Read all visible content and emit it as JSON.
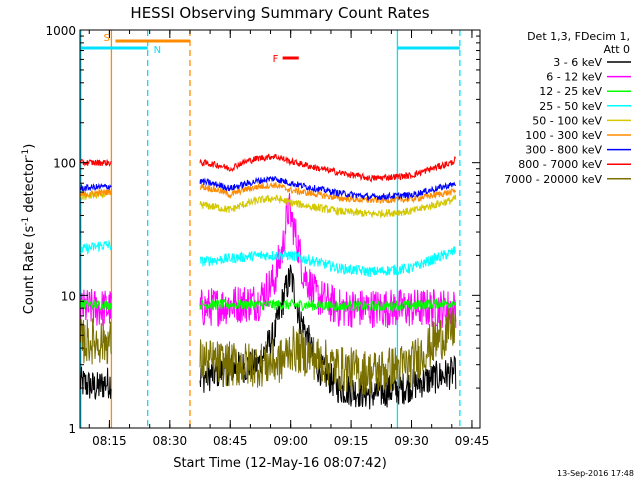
{
  "chart_data": {
    "type": "line",
    "title": "HESSI Observing Summary Count Rates",
    "xlabel": "Start Time (12-May-16 08:07:42)",
    "ylabel_main": "Count Rate (s",
    "ylabel_sup1": "-1",
    "ylabel_mid": " detector",
    "ylabel_sup2": "-1",
    "ylabel_end": ")",
    "yscale": "log",
    "ylim": [
      1,
      1000
    ],
    "xlim_minutes_after_0800": [
      7.7,
      107
    ],
    "yticks": [
      "1",
      "10",
      "100",
      "1000"
    ],
    "xticks": [
      "08:15",
      "08:30",
      "08:45",
      "09:00",
      "09:15",
      "09:30",
      "09:45"
    ],
    "legend": {
      "header1": "Det 1,3, FDecim 1,",
      "header2": "Att 0",
      "placement": "right"
    },
    "series": [
      {
        "name": "3 - 6 keV",
        "color": "#000000",
        "x": [
          7.7,
          12,
          14,
          38,
          45,
          52,
          56,
          58,
          60,
          62,
          66,
          72,
          80,
          88,
          96,
          100,
          101
        ],
        "values": [
          2.2,
          2.0,
          2.2,
          2.4,
          2.8,
          3.0,
          5.0,
          9.0,
          14.0,
          7.0,
          3.0,
          2.0,
          1.8,
          2.0,
          2.4,
          2.6,
          2.6
        ]
      },
      {
        "name": "6 - 12 keV",
        "color": "#ff00ff",
        "x": [
          7.7,
          14,
          38,
          45,
          52,
          56,
          58,
          59.5,
          61,
          63,
          66,
          72,
          80,
          90,
          100,
          101
        ],
        "values": [
          8,
          8,
          8,
          8.5,
          9,
          13,
          22,
          45,
          30,
          15,
          10,
          8,
          8,
          8,
          8,
          8
        ]
      },
      {
        "name": "12 - 25 keV",
        "color": "#00ff00",
        "x": [
          7.7,
          14,
          38,
          45,
          52,
          60,
          66,
          72,
          80,
          90,
          100,
          101
        ],
        "values": [
          8.5,
          8.5,
          8.5,
          8.5,
          8.5,
          8.5,
          8.4,
          8.3,
          8.3,
          8.4,
          8.8,
          8.8
        ]
      },
      {
        "name": "25 - 50 keV",
        "color": "#00ffff",
        "x": [
          7.7,
          14,
          38,
          45,
          52,
          60,
          66,
          72,
          80,
          90,
          100,
          101
        ],
        "values": [
          22,
          24,
          18,
          19,
          20,
          20,
          18,
          16,
          15,
          16,
          21,
          22
        ]
      },
      {
        "name": "50 - 100 keV",
        "color": "#d4c800",
        "x": [
          7.7,
          14,
          38,
          42,
          45,
          48,
          52,
          56,
          60,
          66,
          72,
          80,
          90,
          100,
          101
        ],
        "values": [
          55,
          58,
          48,
          46,
          44,
          48,
          52,
          54,
          50,
          46,
          43,
          41,
          43,
          52,
          54
        ]
      },
      {
        "name": "100 - 300 keV",
        "color": "#ff8c00",
        "x": [
          7.7,
          14,
          38,
          42,
          45,
          48,
          52,
          56,
          60,
          66,
          72,
          80,
          90,
          100,
          101
        ],
        "values": [
          57,
          60,
          66,
          62,
          57,
          62,
          66,
          68,
          62,
          58,
          54,
          52,
          53,
          60,
          62
        ]
      },
      {
        "name": "300 - 800 keV",
        "color": "#0000ff",
        "x": [
          7.7,
          14,
          38,
          42,
          45,
          48,
          52,
          56,
          60,
          66,
          72,
          80,
          90,
          100,
          101
        ],
        "values": [
          64,
          66,
          72,
          68,
          64,
          68,
          73,
          76,
          70,
          64,
          59,
          55,
          57,
          68,
          70
        ]
      },
      {
        "name": "800 - 7000 keV",
        "color": "#ff0000",
        "x": [
          7.7,
          14,
          38,
          42,
          45,
          48,
          52,
          56,
          60,
          66,
          72,
          80,
          90,
          100,
          101
        ],
        "values": [
          100,
          100,
          100,
          96,
          90,
          100,
          108,
          112,
          102,
          92,
          84,
          76,
          80,
          100,
          106
        ]
      },
      {
        "name": "7000 - 20000 keV",
        "color": "#7a7000",
        "x": [
          7.7,
          14,
          38,
          45,
          52,
          58,
          60,
          66,
          72,
          80,
          90,
          100,
          101
        ],
        "values": [
          4.5,
          4.5,
          3.2,
          3.0,
          3.0,
          3.2,
          4.0,
          3.4,
          2.8,
          2.6,
          3.0,
          5.5,
          6.0
        ]
      }
    ],
    "annotations": [
      {
        "label": "S",
        "color": "#ff8c00",
        "x_start": 16.5,
        "x_end": 35
      },
      {
        "label": "N",
        "color": "#00e0ff",
        "x_start": 7.7,
        "x_end": 24.5
      },
      {
        "label": "",
        "color": "#00e0ff",
        "x_start": 86.5,
        "x_end": 102
      },
      {
        "label": "F",
        "color": "#ff0000",
        "x_start": 58,
        "x_end": 62
      }
    ],
    "vlines": [
      {
        "x": 7.9,
        "color": "#00e0ff",
        "style": "solid"
      },
      {
        "x": 15.5,
        "color": "#ff8c00",
        "style": "solid"
      },
      {
        "x": 24.5,
        "color": "#00e0ff",
        "style": "dashed"
      },
      {
        "x": 35,
        "color": "#ff8c00",
        "style": "dashed"
      },
      {
        "x": 86.5,
        "color": "#00e0ff",
        "style": "solid"
      },
      {
        "x": 102,
        "color": "#00e0ff",
        "style": "dashed"
      }
    ]
  },
  "footer": {
    "timestamp": "13-Sep-2016 17:48"
  }
}
